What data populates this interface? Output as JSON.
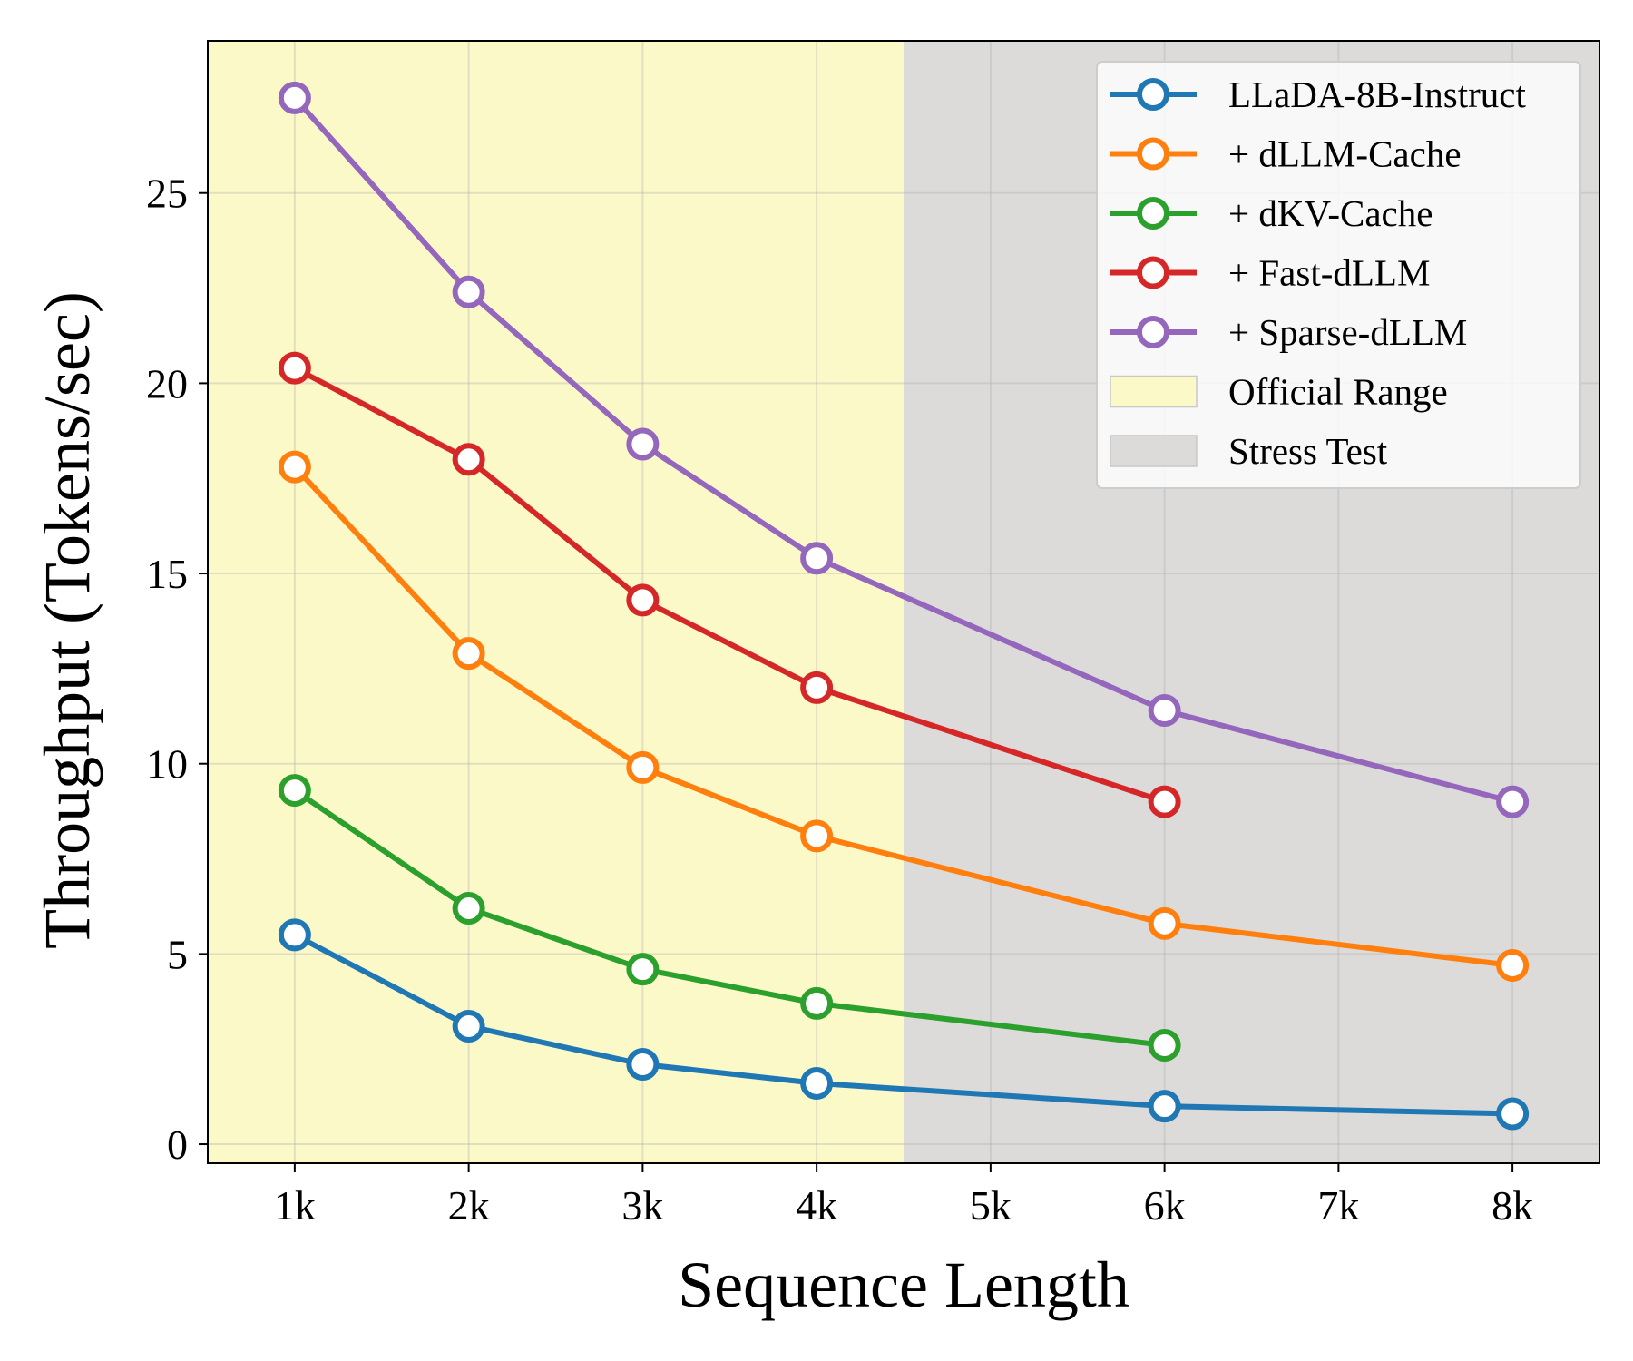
{
  "chart_data": {
    "type": "line",
    "xlabel": "Sequence Length",
    "ylabel": "Throughput (Tokens/sec)",
    "xlim": [
      0.5,
      8.5
    ],
    "ylim": [
      -0.5,
      29
    ],
    "xticks": [
      1,
      2,
      3,
      4,
      5,
      6,
      7,
      8
    ],
    "xtick_labels": [
      "1k",
      "2k",
      "3k",
      "4k",
      "5k",
      "6k",
      "7k",
      "8k"
    ],
    "yticks": [
      0,
      5,
      10,
      15,
      20,
      25
    ],
    "ytick_labels": [
      "0",
      "5",
      "10",
      "15",
      "20",
      "25"
    ],
    "grid": true,
    "legend_position": "top-right",
    "regions": [
      {
        "name": "Official Range",
        "x_start": 0.5,
        "x_end": 4.5,
        "color": "#fcf9c9"
      },
      {
        "name": "Stress Test",
        "x_start": 4.5,
        "x_end": 8.5,
        "color": "#dcdbda"
      }
    ],
    "series": [
      {
        "name": "LLaDA-8B-Instruct",
        "color": "#1f77b4",
        "x": [
          1,
          2,
          3,
          4,
          6,
          8
        ],
        "values": [
          5.5,
          3.1,
          2.1,
          1.6,
          1.0,
          0.8
        ]
      },
      {
        "name": "+ dLLM-Cache",
        "color": "#ff7f0e",
        "x": [
          1,
          2,
          3,
          4,
          6,
          8
        ],
        "values": [
          17.8,
          12.9,
          9.9,
          8.1,
          5.8,
          4.7
        ]
      },
      {
        "name": "+ dKV-Cache",
        "color": "#2ca02c",
        "x": [
          1,
          2,
          3,
          4,
          6
        ],
        "values": [
          9.3,
          6.2,
          4.6,
          3.7,
          2.6
        ]
      },
      {
        "name": "+ Fast-dLLM",
        "color": "#d62728",
        "x": [
          1,
          2,
          3,
          4,
          6
        ],
        "values": [
          20.4,
          18.0,
          14.3,
          12.0,
          9.0
        ]
      },
      {
        "name": "+ Sparse-dLLM",
        "color": "#9467bd",
        "x": [
          1,
          2,
          3,
          4,
          6,
          8
        ],
        "values": [
          27.5,
          22.4,
          18.4,
          15.4,
          11.4,
          9.0
        ]
      }
    ]
  }
}
